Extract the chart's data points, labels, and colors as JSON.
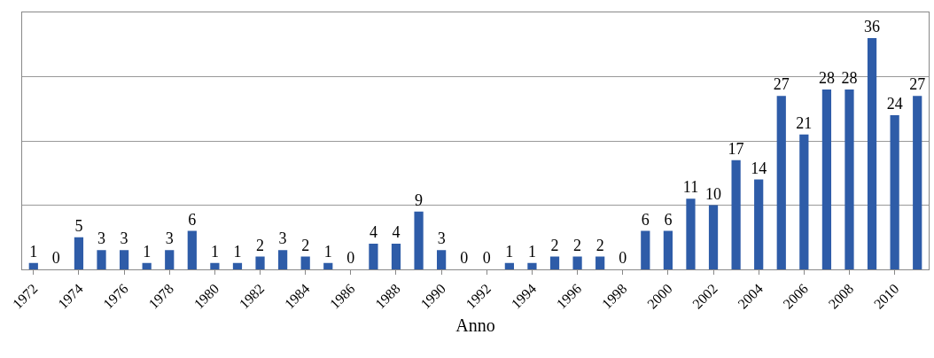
{
  "chart_data": {
    "type": "bar",
    "xlabel": "Anno",
    "categories": [
      "1972",
      null,
      "1974",
      null,
      "1976",
      null,
      "1978",
      null,
      "1980",
      null,
      "1982",
      null,
      "1984",
      null,
      "1986",
      null,
      "1988",
      null,
      "1990",
      null,
      "1992",
      null,
      "1994",
      null,
      "1996",
      null,
      "1998",
      null,
      "2000",
      null,
      "2002",
      null,
      "2004",
      null,
      "2006",
      null,
      "2008",
      null,
      "2010",
      null
    ],
    "values": [
      1,
      0,
      5,
      3,
      3,
      1,
      3,
      6,
      1,
      1,
      2,
      3,
      2,
      1,
      0,
      4,
      4,
      9,
      3,
      0,
      0,
      1,
      1,
      2,
      2,
      2,
      0,
      6,
      6,
      11,
      10,
      17,
      14,
      27,
      21,
      28,
      28,
      36,
      24,
      27
    ],
    "color": "#2e5ca8",
    "ylim": [
      0,
      40
    ],
    "yticks": [
      {
        "value": 0,
        "label": null
      },
      {
        "value": 10,
        "label": null
      },
      {
        "value": 20,
        "label": null
      },
      {
        "value": 30,
        "label": null
      },
      {
        "value": 40,
        "label": null
      }
    ],
    "grid": "y",
    "data_labels": true,
    "tick_labels": "x",
    "legend": false
  }
}
